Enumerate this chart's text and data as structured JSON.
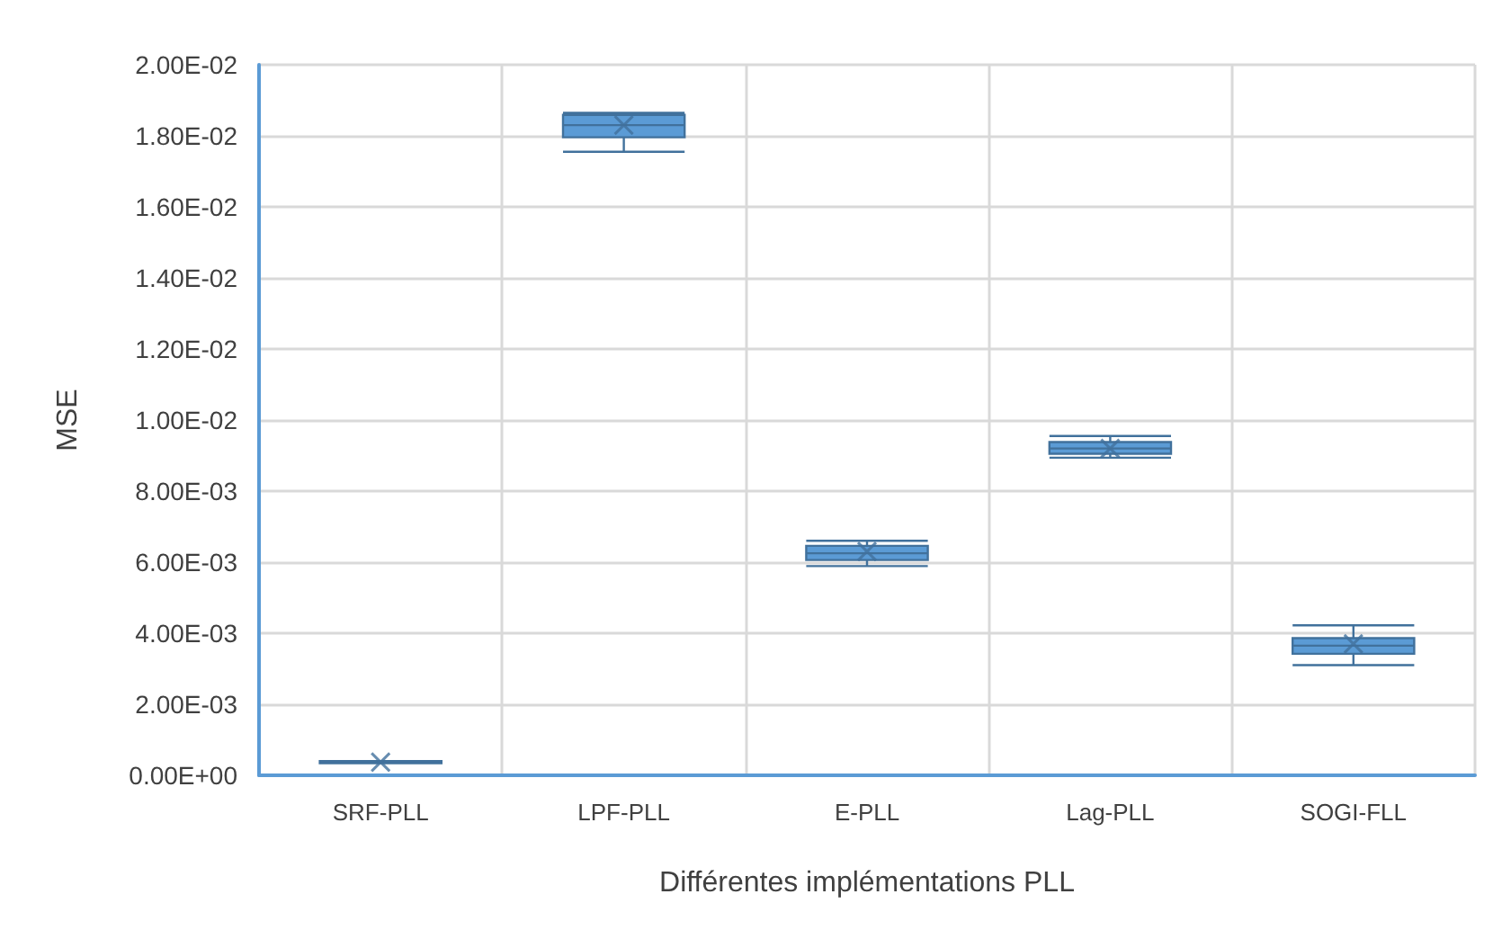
{
  "chart_data": {
    "type": "box",
    "xlabel": "Différentes implémentations PLL",
    "ylabel": "MSE",
    "categories": [
      "SRF-PLL",
      "LPF-PLL",
      "E-PLL",
      "Lag-PLL",
      "SOGI-FLL"
    ],
    "color": "#5b9bd5",
    "boxes": [
      {
        "low": 0.00034,
        "q1": 0.00034,
        "median": 0.00037,
        "q3": 0.0004,
        "high": 0.0004,
        "mean": 0.00037
      },
      {
        "low": 0.01755,
        "q1": 0.01796,
        "median": 0.0183,
        "q3": 0.01859,
        "high": 0.01865,
        "mean": 0.0183
      },
      {
        "low": 0.00589,
        "q1": 0.00606,
        "median": 0.00625,
        "q3": 0.00646,
        "high": 0.0066,
        "mean": 0.0063
      },
      {
        "low": 0.00894,
        "q1": 0.00905,
        "median": 0.0092,
        "q3": 0.00938,
        "high": 0.00955,
        "mean": 0.0092
      },
      {
        "low": 0.0031,
        "q1": 0.00342,
        "median": 0.00365,
        "q3": 0.00386,
        "high": 0.00422,
        "mean": 0.0037
      }
    ],
    "ylim": [
      0,
      0.02
    ],
    "yticks": [
      {
        "value": 0,
        "label": "0.00E+00"
      },
      {
        "value": 0.002,
        "label": "2.00E-03"
      },
      {
        "value": 0.004,
        "label": "4.00E-03"
      },
      {
        "value": 0.006,
        "label": "6.00E-03"
      },
      {
        "value": 0.008,
        "label": "8.00E-03"
      },
      {
        "value": 0.01,
        "label": "1.00E-02"
      },
      {
        "value": 0.012,
        "label": "1.20E-02"
      },
      {
        "value": 0.014,
        "label": "1.40E-02"
      },
      {
        "value": 0.016,
        "label": "1.60E-02"
      },
      {
        "value": 0.018,
        "label": "1.80E-02"
      },
      {
        "value": 0.02,
        "label": "2.00E-02"
      }
    ],
    "grid": true
  }
}
